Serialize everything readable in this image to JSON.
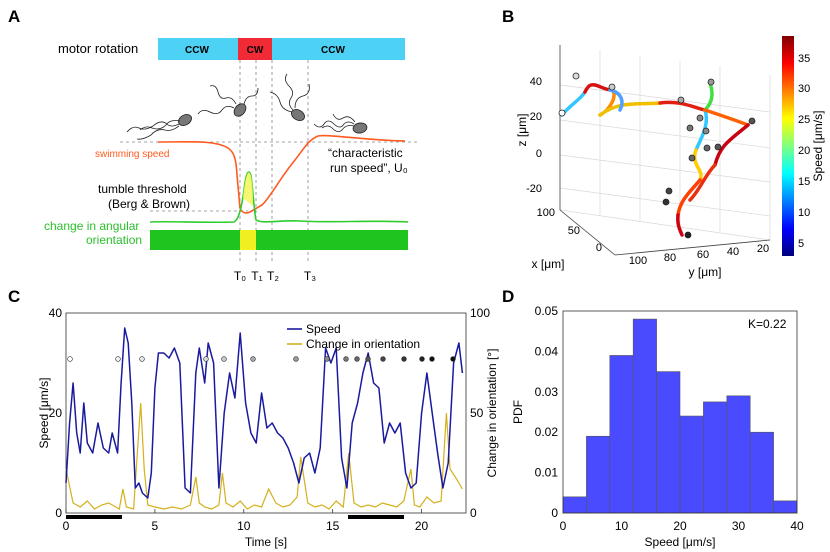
{
  "panels": {
    "a": {
      "letter": "A",
      "motor_label": "motor rotation",
      "segments": [
        "CCW",
        "CW",
        "CCW"
      ],
      "swimming_speed_label": "swimming speed",
      "characteristic_label_1": "“characteristic",
      "characteristic_label_2": "run speed”, U₀",
      "tumble_label_1": "tumble threshold",
      "tumble_label_2": "(Berg & Brown)",
      "orientation_label_1": "change in angular",
      "orientation_label_2": "orientation",
      "time_marks": [
        "T₀",
        "T₁",
        "T₂",
        "T₃"
      ],
      "colors": {
        "ccw": "#4dd2f5",
        "cw": "#f02b35",
        "speed": "#ff5a1f",
        "orient": "#2ecc2e",
        "bar_green": "#1fc41f",
        "bar_yellow": "#f0f020"
      }
    },
    "b": {
      "letter": "B",
      "z_label": "z [μm]",
      "x_label": "x [μm]",
      "y_label": "y [μm]",
      "z_ticks": [
        "40",
        "20",
        "0",
        "-20"
      ],
      "x_ticks": [
        "100",
        "50",
        "0"
      ],
      "y_ticks": [
        "100",
        "80",
        "60",
        "40",
        "20"
      ],
      "colorbar_label": "Speed [μm/s]",
      "colorbar_ticks": [
        "35",
        "30",
        "25",
        "20",
        "15",
        "10",
        "5"
      ]
    },
    "c": {
      "letter": "C",
      "legend_speed": "Speed",
      "legend_orientation": "Change in orientation",
      "xlabel": "Time [s]",
      "ylabel_left": "Speed [μm/s]",
      "ylabel_right": "Change in orientation [°]",
      "colors": {
        "speed": "#1a1aa0",
        "orient": "#d4b01c"
      }
    },
    "d": {
      "letter": "D",
      "annotation": "K=0.22",
      "colors": {
        "bar": "#4a4aff"
      }
    }
  },
  "chart_data": [
    {
      "type": "line",
      "title": "",
      "xlabel": "Time [s]",
      "ylabel": "Speed [μm/s]",
      "y2label": "Change in orientation [°]",
      "xlim": [
        0,
        22.5
      ],
      "ylim": [
        0,
        40
      ],
      "y2lim": [
        0,
        100
      ],
      "xticks": [
        0,
        5,
        10,
        15,
        20
      ],
      "yticks": [
        0,
        20,
        40
      ],
      "y2ticks": [
        0,
        50,
        100
      ],
      "series": [
        {
          "name": "Speed",
          "x": [
            0,
            0.2,
            0.4,
            0.6,
            0.8,
            1.0,
            1.2,
            1.5,
            1.8,
            2.1,
            2.4,
            2.6,
            2.9,
            3.1,
            3.3,
            3.5,
            3.7,
            3.9,
            4.1,
            4.3,
            4.6,
            4.8,
            5.0,
            5.2,
            5.5,
            5.8,
            6.1,
            6.4,
            6.7,
            7.0,
            7.3,
            7.5,
            7.8,
            8.0,
            8.3,
            8.6,
            8.9,
            9.2,
            9.5,
            9.8,
            10.1,
            10.4,
            10.7,
            11.0,
            11.3,
            11.6,
            11.9,
            12.2,
            12.5,
            12.8,
            13.1,
            13.4,
            13.7,
            14.0,
            14.3,
            14.6,
            14.9,
            15.2,
            15.5,
            15.8,
            16.1,
            16.4,
            16.7,
            17.0,
            17.3,
            17.6,
            17.9,
            18.2,
            18.5,
            18.8,
            19.1,
            19.4,
            19.7,
            20.0,
            20.3,
            20.6,
            20.9,
            21.2,
            21.5,
            21.8,
            22.1,
            22.3
          ],
          "values": [
            6,
            18,
            26,
            16,
            12,
            22,
            14,
            12,
            18,
            13,
            12,
            16,
            12,
            26,
            37,
            34,
            22,
            5,
            6,
            4,
            3,
            8,
            25,
            32,
            32,
            31,
            33,
            30,
            5,
            4,
            28,
            33,
            26,
            34,
            30,
            5,
            20,
            28,
            23,
            36,
            22,
            16,
            14,
            24,
            17,
            18,
            16,
            15,
            13,
            10,
            6,
            11,
            12,
            8,
            13,
            33,
            30,
            33,
            11,
            5,
            18,
            22,
            28,
            32,
            26,
            25,
            14,
            18,
            16,
            18,
            8,
            5,
            6,
            20,
            28,
            20,
            12,
            5,
            10,
            30,
            34,
            28
          ]
        },
        {
          "name": "Change in orientation",
          "x": [
            0,
            0.4,
            0.8,
            1.2,
            1.6,
            2.0,
            2.4,
            2.8,
            3.0,
            3.2,
            3.4,
            3.8,
            4.2,
            4.4,
            4.6,
            5.0,
            5.5,
            6.0,
            6.5,
            7.0,
            7.3,
            7.5,
            7.8,
            8.2,
            8.6,
            8.8,
            9.0,
            9.4,
            9.8,
            10.2,
            10.6,
            11.0,
            11.4,
            11.8,
            12.2,
            12.6,
            13.0,
            13.2,
            13.6,
            14.0,
            14.4,
            14.8,
            15.2,
            15.6,
            15.9,
            16.2,
            16.6,
            17.0,
            17.4,
            17.8,
            18.2,
            18.6,
            19.0,
            19.4,
            19.6,
            19.9,
            20.3,
            20.7,
            21.1,
            21.4,
            21.6,
            21.9,
            22.3
          ],
          "values": [
            22,
            5,
            3,
            6,
            2,
            4,
            5,
            3,
            2,
            12,
            3,
            2,
            55,
            22,
            4,
            3,
            2,
            3,
            2,
            4,
            18,
            5,
            3,
            2,
            4,
            20,
            5,
            3,
            6,
            2,
            4,
            3,
            12,
            5,
            3,
            4,
            8,
            28,
            5,
            3,
            4,
            2,
            6,
            3,
            30,
            5,
            3,
            4,
            3,
            5,
            4,
            3,
            6,
            22,
            4,
            3,
            8,
            5,
            6,
            50,
            22,
            18,
            12
          ]
        }
      ]
    },
    {
      "type": "bar",
      "title": "",
      "xlabel": "Speed [μm/s]",
      "ylabel": "PDF",
      "xlim": [
        0,
        40
      ],
      "ylim": [
        0,
        0.05
      ],
      "xticks": [
        0,
        10,
        20,
        30,
        40
      ],
      "yticks": [
        0,
        0.01,
        0.02,
        0.03,
        0.04,
        0.05
      ],
      "bin_edges": [
        0,
        4,
        8,
        12,
        16,
        20,
        24,
        28,
        32,
        36,
        40
      ],
      "values": [
        0.004,
        0.019,
        0.039,
        0.048,
        0.035,
        0.024,
        0.0275,
        0.029,
        0.02,
        0.003
      ]
    }
  ]
}
